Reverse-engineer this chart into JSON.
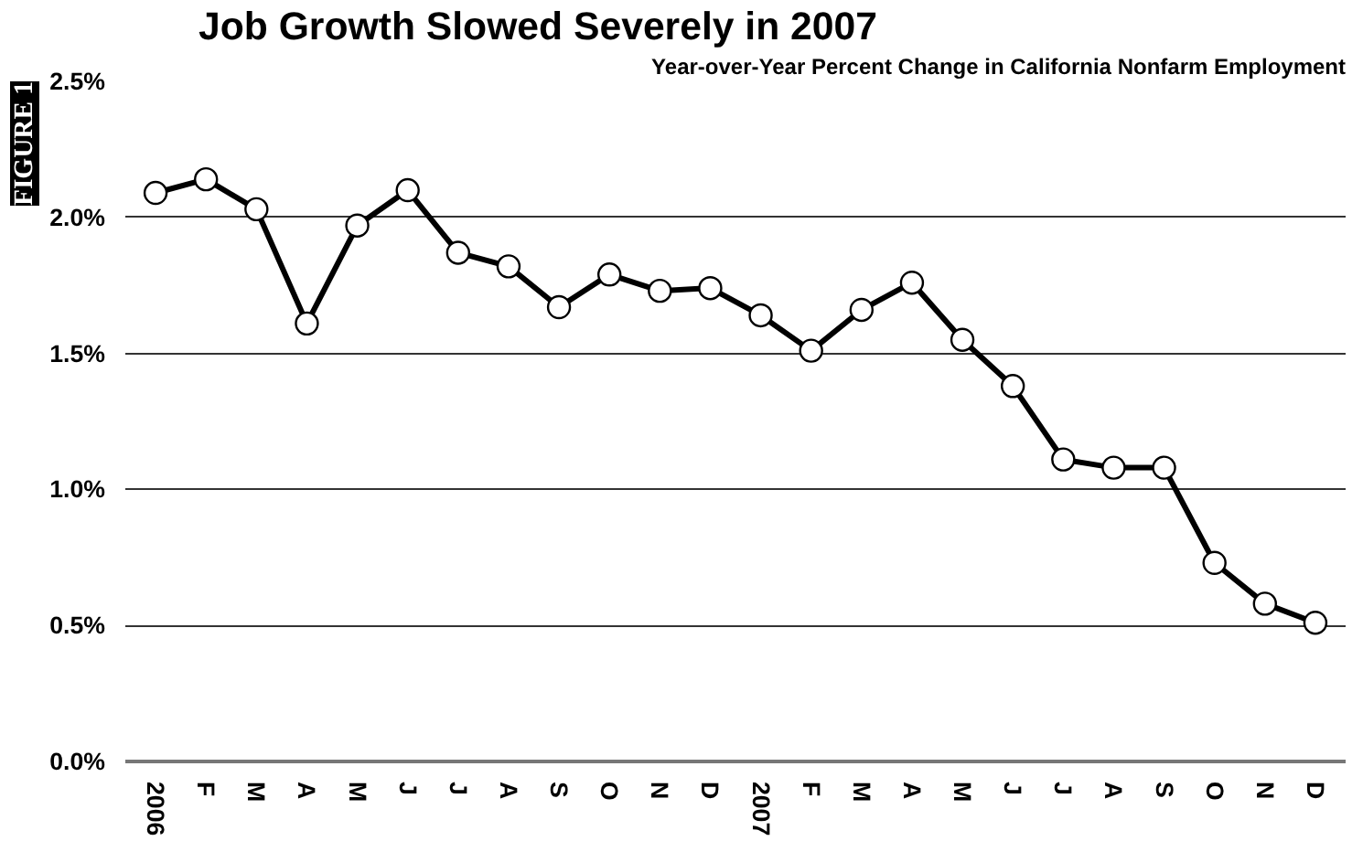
{
  "chart_data": {
    "type": "line",
    "title": "Job Growth Slowed Severely in 2007",
    "subtitle": "Year-over-Year Percent Change in California Nonfarm Employment",
    "annotations": [
      "FIGURE 1"
    ],
    "categories": [
      "2006",
      "F",
      "M",
      "A",
      "M",
      "J",
      "J",
      "A",
      "S",
      "O",
      "N",
      "D",
      "2007",
      "F",
      "M",
      "A",
      "M",
      "J",
      "J",
      "A",
      "S",
      "O",
      "N",
      "D"
    ],
    "series": [
      {
        "color": "#000000",
        "values": [
          2.09,
          2.14,
          2.03,
          1.61,
          1.97,
          2.1,
          1.87,
          1.82,
          1.67,
          1.79,
          1.73,
          1.74,
          1.64,
          1.51,
          1.66,
          1.76,
          1.55,
          1.38,
          1.11,
          1.08,
          1.08,
          0.73,
          0.58,
          0.51
        ]
      }
    ],
    "ylim": [
      0,
      2.5
    ],
    "yticks": [
      {
        "value": 0,
        "label": "0.0%"
      },
      {
        "value": 0.5,
        "label": "0.5%"
      },
      {
        "value": 1,
        "label": "1.0%"
      },
      {
        "value": 1.5,
        "label": "1.5%"
      },
      {
        "value": 2,
        "label": "2.0%"
      },
      {
        "value": 2.5,
        "label": "2.5%"
      }
    ],
    "grid": "y",
    "marker": "circle",
    "line_style": "solid"
  }
}
